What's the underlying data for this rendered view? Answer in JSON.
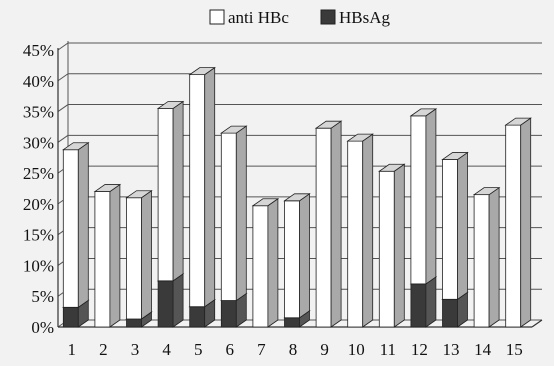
{
  "chart_data": {
    "type": "bar",
    "stacked": true,
    "three_d": true,
    "categories": [
      "1",
      "2",
      "3",
      "4",
      "5",
      "6",
      "7",
      "8",
      "9",
      "10",
      "11",
      "12",
      "13",
      "14",
      "15"
    ],
    "series": [
      {
        "name": "anti HBc",
        "color": "#ffffff",
        "values": [
          28.8,
          22.0,
          21.0,
          35.5,
          41.0,
          31.5,
          19.7,
          20.5,
          32.3,
          30.2,
          25.3,
          34.3,
          27.2,
          21.5,
          32.8
        ]
      },
      {
        "name": "HBsAg",
        "color": "#3a3a3a",
        "values": [
          3.2,
          0.0,
          1.3,
          7.5,
          3.3,
          4.3,
          0.0,
          1.5,
          0.0,
          0.0,
          0.0,
          7.0,
          4.5,
          0.0,
          0.0
        ]
      }
    ],
    "ylim": [
      0,
      45
    ],
    "yticks": [
      "0%",
      "5%",
      "10%",
      "15%",
      "20%",
      "25%",
      "30%",
      "35%",
      "40%",
      "45%"
    ],
    "grid": true,
    "legend_position": "top-center"
  }
}
